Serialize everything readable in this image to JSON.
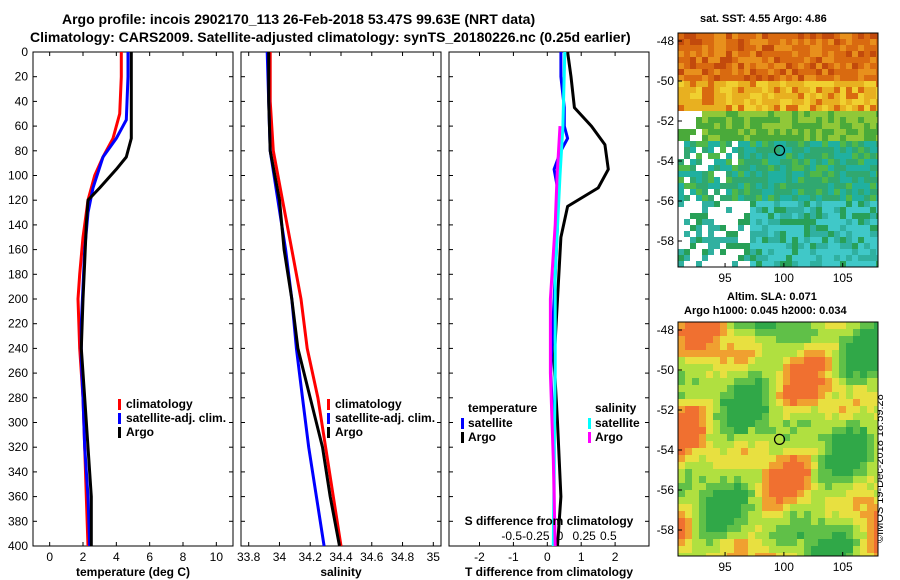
{
  "header": {
    "title_line1": "Argo profile: incois 2902170_113 26-Feb-2018 53.47S 99.63E (NRT data)",
    "title_line2": "Climatology: CARS2009. Satellite-adjusted climatology: synTS_20180226.nc (0.25d earlier)"
  },
  "colors": {
    "climatology": "#ff0000",
    "satellite": "#0000ff",
    "argo": "#000000",
    "sal_satellite": "#00ffff",
    "sal_argo": "#ff00ff"
  },
  "chart_data": [
    {
      "id": "temperature",
      "type": "line",
      "xlabel": "temperature (deg C)",
      "xlim": [
        -1,
        11
      ],
      "ylim": [
        400,
        0
      ],
      "xticks": [
        0,
        2,
        4,
        6,
        8,
        10
      ],
      "yticks": [
        0,
        20,
        40,
        60,
        80,
        100,
        120,
        140,
        160,
        180,
        200,
        220,
        240,
        260,
        280,
        300,
        320,
        340,
        360,
        380,
        400
      ],
      "legend": [
        "climatology",
        "satellite-adj. clim.",
        "Argo"
      ],
      "series": [
        {
          "name": "climatology",
          "color": "#ff0000",
          "points": [
            [
              4.3,
              0
            ],
            [
              4.3,
              20
            ],
            [
              4.2,
              50
            ],
            [
              3.8,
              70
            ],
            [
              3.2,
              85
            ],
            [
              2.7,
              100
            ],
            [
              2.3,
              120
            ],
            [
              2,
              150
            ],
            [
              1.8,
              180
            ],
            [
              1.7,
              200
            ],
            [
              1.8,
              240
            ],
            [
              2,
              280
            ],
            [
              2.1,
              320
            ],
            [
              2.2,
              360
            ],
            [
              2.3,
              400
            ]
          ]
        },
        {
          "name": "satellite-adj. clim.",
          "color": "#0000ff",
          "points": [
            [
              4.7,
              0
            ],
            [
              4.7,
              20
            ],
            [
              4.6,
              55
            ],
            [
              4,
              70
            ],
            [
              3.2,
              85
            ],
            [
              2.6,
              110
            ],
            [
              2.3,
              130
            ],
            [
              2.1,
              160
            ],
            [
              2,
              190
            ],
            [
              1.9,
              220
            ],
            [
              1.9,
              250
            ],
            [
              2,
              280
            ],
            [
              2.1,
              320
            ],
            [
              2.3,
              360
            ],
            [
              2.4,
              400
            ]
          ]
        },
        {
          "name": "Argo",
          "color": "#000000",
          "points": [
            [
              4.9,
              0
            ],
            [
              4.9,
              30
            ],
            [
              4.9,
              70
            ],
            [
              4.6,
              85
            ],
            [
              4,
              95
            ],
            [
              3,
              110
            ],
            [
              2.3,
              120
            ],
            [
              2.2,
              140
            ],
            [
              2.1,
              170
            ],
            [
              2,
              200
            ],
            [
              1.9,
              240
            ],
            [
              2.1,
              280
            ],
            [
              2.3,
              320
            ],
            [
              2.5,
              360
            ],
            [
              2.5,
              400
            ]
          ]
        }
      ]
    },
    {
      "id": "salinity",
      "type": "line",
      "xlabel": "salinity",
      "xlim": [
        33.75,
        35.05
      ],
      "ylim": [
        400,
        0
      ],
      "xticks": [
        33.8,
        34,
        34.2,
        34.4,
        34.6,
        34.8,
        35
      ],
      "xticklabels": [
        "33.8",
        "34",
        "34.2",
        "34.4",
        "34.6",
        "34.8",
        "35"
      ],
      "legend": [
        "climatology",
        "satellite-adj. clim.",
        "Argo"
      ],
      "series": [
        {
          "name": "climatology",
          "color": "#ff0000",
          "points": [
            [
              33.94,
              0
            ],
            [
              33.94,
              40
            ],
            [
              33.96,
              80
            ],
            [
              34.02,
              120
            ],
            [
              34.08,
              160
            ],
            [
              34.14,
              200
            ],
            [
              34.18,
              240
            ],
            [
              34.25,
              280
            ],
            [
              34.3,
              320
            ],
            [
              34.35,
              360
            ],
            [
              34.4,
              400
            ]
          ]
        },
        {
          "name": "satellite-adj. clim.",
          "color": "#0000ff",
          "points": [
            [
              33.92,
              0
            ],
            [
              33.93,
              40
            ],
            [
              33.94,
              80
            ],
            [
              33.99,
              120
            ],
            [
              34.04,
              160
            ],
            [
              34.08,
              200
            ],
            [
              34.11,
              240
            ],
            [
              34.15,
              280
            ],
            [
              34.19,
              320
            ],
            [
              34.24,
              360
            ],
            [
              34.29,
              400
            ]
          ]
        },
        {
          "name": "Argo",
          "color": "#000000",
          "points": [
            [
              33.93,
              0
            ],
            [
              33.93,
              40
            ],
            [
              33.94,
              80
            ],
            [
              34.0,
              120
            ],
            [
              34.03,
              160
            ],
            [
              34.08,
              200
            ],
            [
              34.12,
              240
            ],
            [
              34.2,
              280
            ],
            [
              34.28,
              320
            ],
            [
              34.33,
              360
            ],
            [
              34.39,
              400
            ]
          ]
        }
      ]
    },
    {
      "id": "difference",
      "type": "line",
      "xlabel": "T difference from climatology",
      "top_xlabel": "S difference from climatology",
      "xlim": [
        -2.9,
        3.0
      ],
      "ylim": [
        400,
        0
      ],
      "xticks": [
        -2,
        -1,
        0,
        1,
        2
      ],
      "top_xticks": [
        -0.5,
        -0.25,
        0,
        0.25,
        0.5
      ],
      "top_xticklabels": [
        "-0.5",
        "-0.25",
        "0",
        "0.25",
        "0.5"
      ],
      "legend_temperature": {
        "title": "temperature",
        "entries": [
          "satellite",
          "Argo"
        ]
      },
      "legend_salinity": {
        "title": "salinity",
        "entries": [
          "satellite",
          "Argo"
        ]
      },
      "series": [
        {
          "name": "T satellite",
          "color": "#0000ff",
          "points": [
            [
              0.4,
              0
            ],
            [
              0.4,
              20
            ],
            [
              0.5,
              45
            ],
            [
              0.5,
              60
            ],
            [
              0.6,
              70
            ],
            [
              0.4,
              80
            ],
            [
              0.2,
              95
            ],
            [
              0.3,
              110
            ],
            [
              0.3,
              140
            ],
            [
              0.2,
              200
            ],
            [
              0.1,
              260
            ],
            [
              0.2,
              320
            ],
            [
              0.2,
              400
            ]
          ]
        },
        {
          "name": "T Argo",
          "color": "#000000",
          "points": [
            [
              0.6,
              0
            ],
            [
              0.7,
              20
            ],
            [
              0.8,
              45
            ],
            [
              1.3,
              60
            ],
            [
              1.7,
              75
            ],
            [
              1.8,
              95
            ],
            [
              1.5,
              110
            ],
            [
              0.6,
              125
            ],
            [
              0.4,
              150
            ],
            [
              0.3,
              200
            ],
            [
              0.2,
              250
            ],
            [
              0.3,
              300
            ],
            [
              0.4,
              360
            ],
            [
              0.3,
              400
            ]
          ]
        },
        {
          "name": "S satellite",
          "color": "#00ffff",
          "points": [
            [
              0.05,
              0
            ],
            [
              0.03,
              60
            ],
            [
              0.0,
              100
            ],
            [
              -0.05,
              180
            ],
            [
              -0.05,
              260
            ],
            [
              -0.06,
              330
            ],
            [
              -0.07,
              400
            ]
          ]
        },
        {
          "name": "S Argo",
          "color": "#ff00ff",
          "points": [
            [
              0.0,
              60
            ],
            [
              -0.03,
              100
            ],
            [
              -0.05,
              140
            ],
            [
              -0.1,
              200
            ],
            [
              -0.1,
              260
            ],
            [
              -0.07,
              330
            ],
            [
              -0.05,
              400
            ]
          ]
        }
      ]
    },
    {
      "id": "sst_map",
      "type": "heatmap",
      "title": "sat. SST: 4.55 Argo: 4.86",
      "xticks": [
        95,
        100,
        105
      ],
      "yticks": [
        -48,
        -50,
        -52,
        -54,
        -56,
        -58
      ],
      "xlim": [
        91,
        108
      ],
      "ylim": [
        -59.3,
        -47.6
      ],
      "marker": [
        99.63,
        -53.47
      ]
    },
    {
      "id": "sla_map",
      "type": "heatmap",
      "title_line1": "Altim. SLA: 0.071",
      "title_line2": "Argo h1000: 0.045 h2000: 0.034",
      "xticks": [
        95,
        100,
        105
      ],
      "yticks": [
        -48,
        -50,
        -52,
        -54,
        -56,
        -58
      ],
      "xlim": [
        91,
        108
      ],
      "ylim": [
        -59.3,
        -47.6
      ],
      "marker": [
        99.63,
        -53.47
      ]
    }
  ],
  "footer": {
    "stamp": "©IMOS 19-Dec-2018 18:59:28"
  }
}
